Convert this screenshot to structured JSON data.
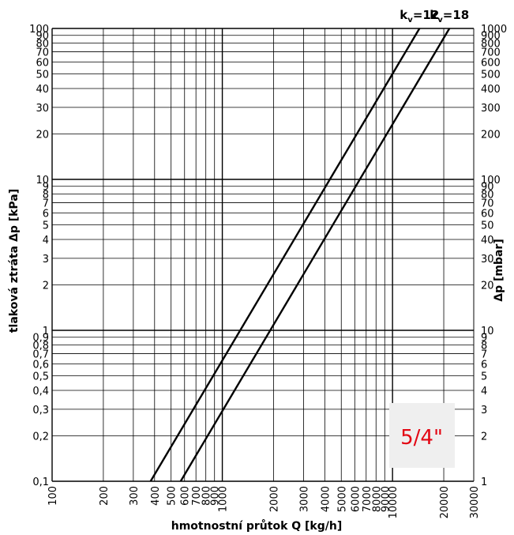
{
  "chart_data": {
    "type": "line",
    "title": "",
    "xlabel": "hmotnostní průtok Q [kg/h]",
    "ylabel": "tlaková ztráta Δp [kPa]",
    "ylabel_right": "Δp [mbar]",
    "x_scale": "log",
    "y_scale": "log",
    "xlim": [
      100,
      30000
    ],
    "ylim": [
      0.1,
      100
    ],
    "grid": true,
    "x_ticks": [
      "100",
      "200",
      "300",
      "400",
      "500",
      "600",
      "700",
      "800",
      "900",
      "1000",
      "2000",
      "3000",
      "4000",
      "5000",
      "6000",
      "7000",
      "8000",
      "9000",
      "10000",
      "20000",
      "30000"
    ],
    "y_ticks_left": [
      "0,1",
      "0,2",
      "0,3",
      "0,4",
      "0,5",
      "0,6",
      "0,7",
      "0,8",
      "0,9",
      "1",
      "2",
      "3",
      "4",
      "5",
      "6",
      "7",
      "8",
      "9",
      "10",
      "20",
      "30",
      "40",
      "50",
      "60",
      "70",
      "80",
      "90",
      "100"
    ],
    "y_ticks_right": [
      "1",
      "2",
      "3",
      "4",
      "5",
      "6",
      "7",
      "8",
      "9",
      "10",
      "20",
      "30",
      "40",
      "50",
      "60",
      "70",
      "80",
      "90",
      "100",
      "200",
      "300",
      "400",
      "500",
      "600",
      "700",
      "800",
      "900",
      "1000"
    ],
    "series": [
      {
        "name": "kv=12",
        "label_main": "k",
        "label_sub": "v",
        "label_tail": "=12",
        "x": [
          379,
          14400
        ],
        "y": [
          0.1,
          100
        ]
      },
      {
        "name": "kv=18",
        "label_main": "k",
        "label_sub": "v",
        "label_tail": "=18",
        "x": [
          569,
          21600
        ],
        "y": [
          0.1,
          100
        ]
      }
    ],
    "line_color": "#000000"
  },
  "badge": {
    "text": "5/4\"",
    "text_color": "#e30613",
    "bg_color": "#efefef"
  }
}
